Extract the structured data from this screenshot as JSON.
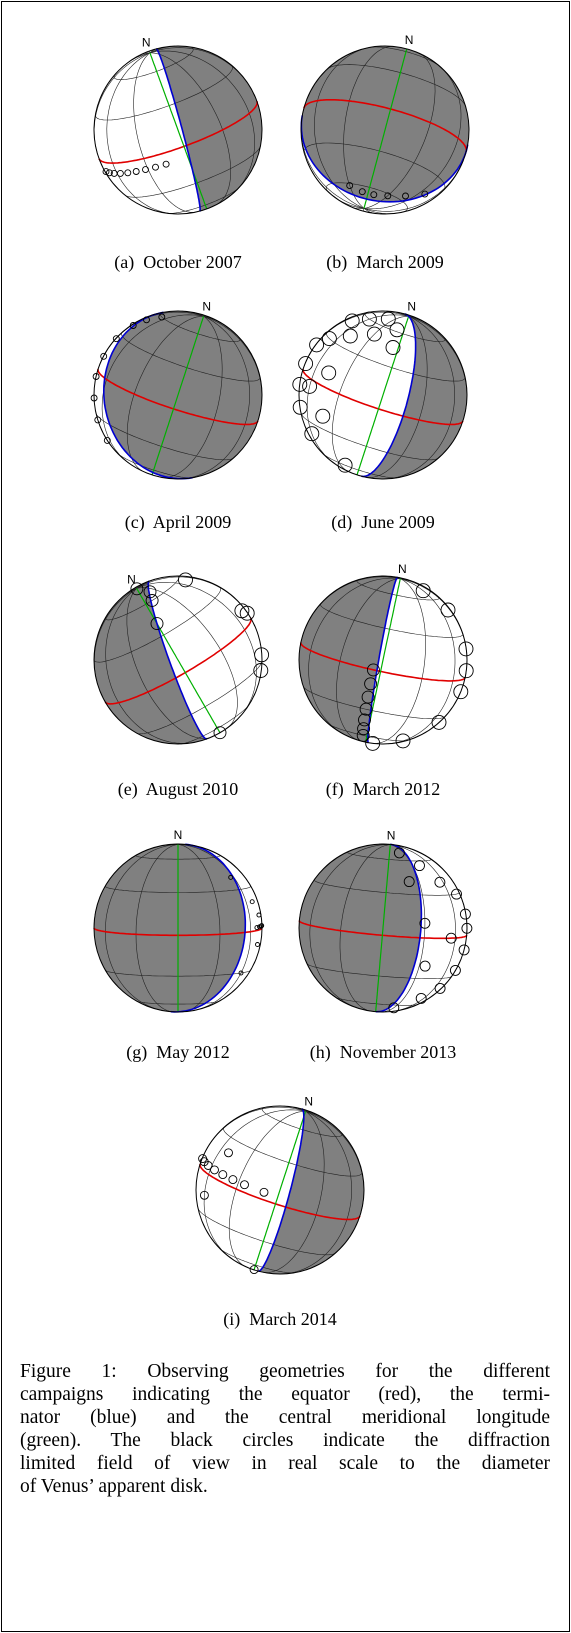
{
  "panels": [
    {
      "north": "N",
      "caption": "(a)  October 2007"
    },
    {
      "north": "N",
      "caption": "(b)  March 2009"
    },
    {
      "north": "N",
      "caption": "(c)  April 2009"
    },
    {
      "north": "N",
      "caption": "(d)  June 2009"
    },
    {
      "north": "N",
      "caption": "(e)  August 2010"
    },
    {
      "north": "N",
      "caption": "(f)  March 2012"
    },
    {
      "north": "N",
      "caption": "(g)  May 2012"
    },
    {
      "north": "N",
      "caption": "(h)  November 2013"
    },
    {
      "north": "N",
      "caption": "(i)  March 2014"
    }
  ],
  "figure_caption": [
    "Figure 1: Observing geometries for the different",
    "campaigns indicating the equator (red), the termi-",
    "nator (blue) and the central meridional longitude",
    "(green). The black circles indicate the diffraction",
    "limited field of view in real scale to the diameter",
    "of Venus’ apparent disk."
  ]
}
